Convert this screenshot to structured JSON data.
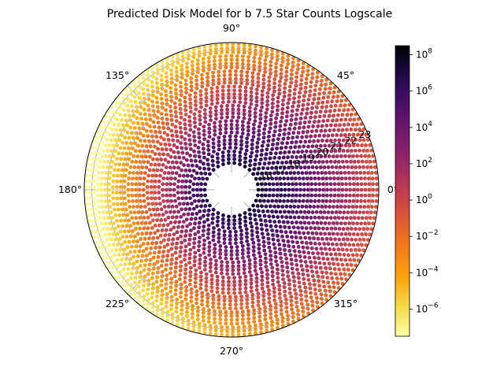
{
  "chart_data": {
    "type": "polar-scatter",
    "title": "Predicted Disk Model for b 7.5  Star Counts  Logscale",
    "theta_tick_labels": [
      "0°",
      "45°",
      "90°",
      "135°",
      "180°",
      "225°",
      "270°",
      "315°"
    ],
    "theta_tick_values_deg": [
      0,
      45,
      90,
      135,
      180,
      225,
      270,
      315
    ],
    "r_tick_labels": [
      "16",
      "17",
      "18",
      "19",
      "20",
      "21",
      "22",
      "23"
    ],
    "r_tick_values": [
      16,
      17,
      18,
      19,
      20,
      21,
      22,
      23
    ],
    "r_min": 15,
    "r_max": 23.5,
    "rings": [
      15.625,
      15.875,
      16.125,
      16.375,
      16.625,
      16.875,
      17.125,
      17.375,
      17.625,
      17.875,
      18.125,
      18.375,
      18.625,
      18.875,
      19.125,
      19.375,
      19.625,
      19.875,
      20.125,
      20.375,
      20.625,
      20.875,
      21.125,
      21.375,
      21.625,
      21.875,
      22.125,
      22.375,
      22.625,
      22.875,
      23.125,
      23.375
    ],
    "colorbar": {
      "scale": "log",
      "colormap": "inferno_r",
      "min_exponent": -7.5,
      "max_exponent": 8.5,
      "tick_exponents": [
        -6,
        -4,
        -2,
        0,
        2,
        4,
        6,
        8
      ],
      "tick_labels": [
        "10",
        "10",
        "10",
        "10",
        "10",
        "10",
        "10",
        "10"
      ],
      "tick_superscripts": [
        "−6",
        "−4",
        "−2",
        "0",
        "2",
        "4",
        "6",
        "8"
      ]
    }
  }
}
